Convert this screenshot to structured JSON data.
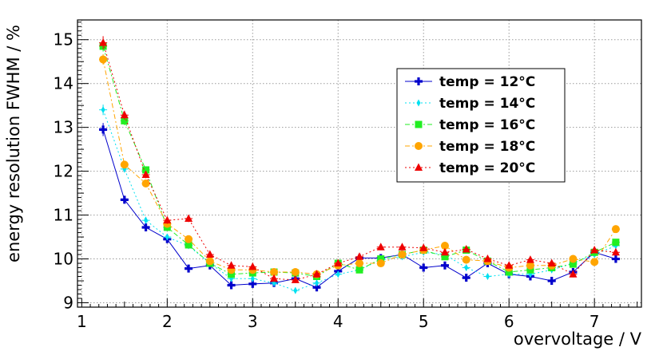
{
  "chart_data": {
    "type": "scatter",
    "xlabel": "overvoltage / V",
    "ylabel": "energy resolution FWHM / %",
    "xlim": [
      0.95,
      7.55
    ],
    "ylim": [
      8.9,
      15.45
    ],
    "grid": true,
    "legend_position": "upper-right",
    "x_ticks": [
      1,
      2,
      3,
      4,
      5,
      6,
      7
    ],
    "y_ticks": [
      9,
      10,
      11,
      12,
      13,
      14,
      15
    ],
    "series": [
      {
        "name": "temp = 12°C",
        "color": "#0000cc",
        "marker": "cross",
        "line_style": "solid",
        "x": [
          1.25,
          1.5,
          1.75,
          2.0,
          2.25,
          2.5,
          2.75,
          3.0,
          3.25,
          3.5,
          3.75,
          4.0,
          4.25,
          4.5,
          4.75,
          5.0,
          5.25,
          5.5,
          5.75,
          6.0,
          6.25,
          6.5,
          6.75,
          7.0,
          7.25
        ],
        "y": [
          12.95,
          11.35,
          10.72,
          10.45,
          9.78,
          9.85,
          9.4,
          9.43,
          9.45,
          9.55,
          9.35,
          9.72,
          10.02,
          10.02,
          10.1,
          9.8,
          9.85,
          9.57,
          9.9,
          9.65,
          9.6,
          9.5,
          9.7,
          10.15,
          10.0
        ],
        "yerr": [
          0.15,
          0.08,
          0.08,
          0.08,
          0.07,
          0.07,
          0.07,
          0.07,
          0.07,
          0.07,
          0.07,
          0.07,
          0.07,
          0.07,
          0.07,
          0.07,
          0.07,
          0.07,
          0.07,
          0.07,
          0.07,
          0.07,
          0.07,
          0.07,
          0.07
        ]
      },
      {
        "name": "temp = 14°C",
        "color": "#00e0f0",
        "marker": "diamond",
        "line_style": "dotted",
        "x": [
          1.25,
          1.5,
          1.75,
          2.0,
          2.25,
          2.5,
          2.75,
          3.0,
          3.25,
          3.5,
          3.75,
          4.0,
          4.25,
          4.5,
          4.75,
          5.0,
          5.25,
          5.5,
          5.75,
          6.0,
          6.25,
          6.5,
          6.75,
          7.0,
          7.25
        ],
        "y": [
          13.4,
          12.05,
          10.88,
          10.5,
          10.3,
          9.9,
          9.55,
          9.55,
          9.45,
          9.28,
          9.45,
          9.65,
          9.75,
          9.98,
          10.05,
          10.15,
          10.1,
          9.8,
          9.6,
          9.65,
          9.65,
          9.75,
          9.9,
          10.1,
          10.3
        ],
        "yerr": [
          0.12,
          0.08,
          0.08,
          0.07,
          0.07,
          0.07,
          0.07,
          0.07,
          0.07,
          0.07,
          0.07,
          0.07,
          0.07,
          0.07,
          0.07,
          0.07,
          0.07,
          0.07,
          0.07,
          0.07,
          0.07,
          0.07,
          0.07,
          0.07,
          0.07
        ]
      },
      {
        "name": "temp = 16°C",
        "color": "#22ee22",
        "marker": "square",
        "line_style": "dashdot",
        "x": [
          1.25,
          1.5,
          1.75,
          2.0,
          2.25,
          2.5,
          2.75,
          3.0,
          3.25,
          3.5,
          3.75,
          4.0,
          4.25,
          4.5,
          4.75,
          5.0,
          5.25,
          5.5,
          5.75,
          6.0,
          6.25,
          6.5,
          6.75,
          7.0,
          7.25
        ],
        "y": [
          14.85,
          13.15,
          12.03,
          10.72,
          10.32,
          9.9,
          9.65,
          9.68,
          9.7,
          9.68,
          9.6,
          9.9,
          9.75,
          10.0,
          10.1,
          10.2,
          10.05,
          10.2,
          9.95,
          9.7,
          9.75,
          9.8,
          9.88,
          10.15,
          10.38
        ],
        "yerr": [
          0.12,
          0.1,
          0.08,
          0.08,
          0.07,
          0.07,
          0.07,
          0.07,
          0.07,
          0.07,
          0.07,
          0.07,
          0.07,
          0.07,
          0.07,
          0.07,
          0.07,
          0.07,
          0.07,
          0.07,
          0.07,
          0.07,
          0.07,
          0.07,
          0.07
        ]
      },
      {
        "name": "temp = 18°C",
        "color": "#ffa500",
        "marker": "circle",
        "line_style": "dashdot",
        "x": [
          1.25,
          1.5,
          1.75,
          2.0,
          2.25,
          2.5,
          2.75,
          3.0,
          3.25,
          3.5,
          3.75,
          4.0,
          4.25,
          4.5,
          4.75,
          5.0,
          5.25,
          5.5,
          5.75,
          6.0,
          6.25,
          6.5,
          6.75,
          7.0,
          7.25
        ],
        "y": [
          14.55,
          12.15,
          11.72,
          10.8,
          10.45,
          9.95,
          9.75,
          9.75,
          9.7,
          9.7,
          9.65,
          9.85,
          9.9,
          9.9,
          10.1,
          10.2,
          10.3,
          9.98,
          9.95,
          9.8,
          9.85,
          9.85,
          10.0,
          9.93,
          10.68
        ],
        "yerr": [
          0.12,
          0.08,
          0.08,
          0.07,
          0.07,
          0.07,
          0.07,
          0.07,
          0.07,
          0.07,
          0.07,
          0.07,
          0.07,
          0.07,
          0.07,
          0.07,
          0.07,
          0.07,
          0.07,
          0.07,
          0.07,
          0.07,
          0.07,
          0.07,
          0.07
        ]
      },
      {
        "name": "temp = 20°C",
        "color": "#ee0000",
        "marker": "triangle",
        "line_style": "dotted",
        "x": [
          1.25,
          1.5,
          1.75,
          2.0,
          2.25,
          2.5,
          2.75,
          3.0,
          3.25,
          3.5,
          3.75,
          4.0,
          4.25,
          4.5,
          4.75,
          5.0,
          5.25,
          5.5,
          5.75,
          6.0,
          6.25,
          6.5,
          6.75,
          7.0,
          7.25
        ],
        "y": [
          14.93,
          13.28,
          11.92,
          10.88,
          10.92,
          10.1,
          9.85,
          9.82,
          9.55,
          9.52,
          9.65,
          9.9,
          10.05,
          10.27,
          10.27,
          10.25,
          10.15,
          10.22,
          10.0,
          9.85,
          9.98,
          9.9,
          9.65,
          10.2,
          10.15
        ],
        "yerr": [
          0.15,
          0.1,
          0.08,
          0.08,
          0.08,
          0.07,
          0.07,
          0.07,
          0.07,
          0.07,
          0.07,
          0.07,
          0.07,
          0.07,
          0.07,
          0.07,
          0.07,
          0.07,
          0.07,
          0.07,
          0.07,
          0.07,
          0.07,
          0.07,
          0.07
        ]
      }
    ]
  }
}
